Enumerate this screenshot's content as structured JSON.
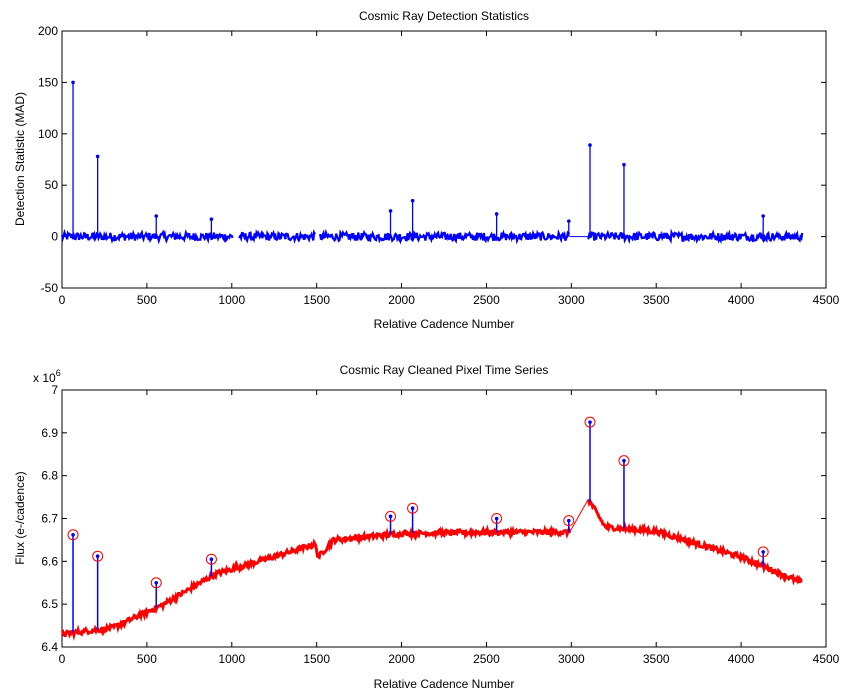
{
  "chart_data": [
    {
      "type": "line",
      "title": "Cosmic Ray Detection Statistics",
      "xlabel": "Relative Cadence Number",
      "ylabel": "Detection Statistic (MAD)",
      "xlim": [
        0,
        4500
      ],
      "ylim": [
        -50,
        200
      ],
      "xticks": [
        "0",
        "500",
        "1000",
        "1500",
        "2000",
        "2500",
        "3000",
        "3500",
        "4000",
        "4500"
      ],
      "yticks": [
        "-50",
        "0",
        "50",
        "100",
        "150",
        "200"
      ],
      "grid": false,
      "color": "#0000ff",
      "baseline": {
        "x_range": [
          0,
          4360
        ],
        "gaps": [
          [
            1005,
            1040
          ],
          [
            1490,
            1520
          ],
          [
            2990,
            3100
          ]
        ],
        "value": 0,
        "noise_amplitude": 4
      },
      "spikes": [
        {
          "x": 65,
          "y": 150
        },
        {
          "x": 210,
          "y": 78
        },
        {
          "x": 555,
          "y": 20
        },
        {
          "x": 880,
          "y": 17
        },
        {
          "x": 1935,
          "y": 25
        },
        {
          "x": 2065,
          "y": 35
        },
        {
          "x": 2560,
          "y": 22
        },
        {
          "x": 2985,
          "y": 15
        },
        {
          "x": 3110,
          "y": 89
        },
        {
          "x": 3310,
          "y": 70
        },
        {
          "x": 4130,
          "y": 20
        }
      ]
    },
    {
      "type": "line",
      "title": "Cosmic Ray Cleaned Pixel Time Series",
      "xlabel": "Relative Cadence Number",
      "ylabel": "Flux (e-/cadence)",
      "multiplier": "x 10",
      "multiplier_exp": "6",
      "xlim": [
        0,
        4500
      ],
      "ylim": [
        6.4,
        7.0
      ],
      "xticks": [
        "0",
        "500",
        "1000",
        "1500",
        "2000",
        "2500",
        "3000",
        "3500",
        "4000",
        "4500"
      ],
      "yticks": [
        "6.4",
        "6.5",
        "6.6",
        "6.7",
        "6.8",
        "6.9",
        "7"
      ],
      "grid": false,
      "cleaned_color": "#ff0000",
      "raw_color": "#0000ff",
      "trend": [
        {
          "x": 0,
          "y": 6.43
        },
        {
          "x": 300,
          "y": 6.445
        },
        {
          "x": 600,
          "y": 6.5
        },
        {
          "x": 900,
          "y": 6.57
        },
        {
          "x": 1200,
          "y": 6.605
        },
        {
          "x": 1490,
          "y": 6.64
        },
        {
          "x": 1510,
          "y": 6.61
        },
        {
          "x": 1600,
          "y": 6.65
        },
        {
          "x": 2000,
          "y": 6.665
        },
        {
          "x": 2500,
          "y": 6.668
        },
        {
          "x": 2990,
          "y": 6.668
        },
        {
          "x": 3100,
          "y": 6.745
        },
        {
          "x": 3200,
          "y": 6.68
        },
        {
          "x": 3500,
          "y": 6.67
        },
        {
          "x": 4000,
          "y": 6.61
        },
        {
          "x": 4360,
          "y": 6.55
        }
      ],
      "spikes": [
        {
          "x": 65,
          "y": 6.662
        },
        {
          "x": 210,
          "y": 6.612
        },
        {
          "x": 555,
          "y": 6.55
        },
        {
          "x": 880,
          "y": 6.605
        },
        {
          "x": 1935,
          "y": 6.705
        },
        {
          "x": 2065,
          "y": 6.724
        },
        {
          "x": 2560,
          "y": 6.7
        },
        {
          "x": 2985,
          "y": 6.695
        },
        {
          "x": 3110,
          "y": 6.925
        },
        {
          "x": 3310,
          "y": 6.835
        },
        {
          "x": 4130,
          "y": 6.622
        }
      ]
    }
  ]
}
